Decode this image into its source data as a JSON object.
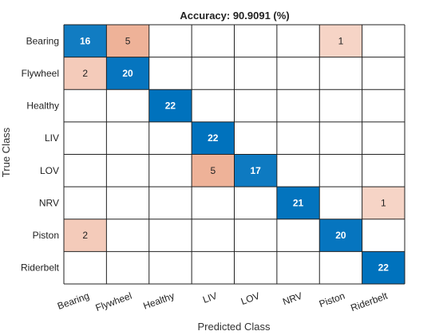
{
  "chart_data": {
    "type": "heatmap",
    "title": "Accuracy: 90.9091 (%)",
    "xlabel": "Predicted Class",
    "ylabel": "True Class",
    "classes": [
      "Bearing",
      "Flywheel",
      "Healthy",
      "LIV",
      "LOV",
      "NRV",
      "Piston",
      "Riderbelt"
    ],
    "matrix": [
      [
        16,
        5,
        0,
        0,
        0,
        0,
        1,
        0
      ],
      [
        2,
        20,
        0,
        0,
        0,
        0,
        0,
        0
      ],
      [
        0,
        0,
        22,
        0,
        0,
        0,
        0,
        0
      ],
      [
        0,
        0,
        0,
        22,
        0,
        0,
        0,
        0
      ],
      [
        0,
        0,
        0,
        5,
        17,
        0,
        0,
        0
      ],
      [
        0,
        0,
        0,
        0,
        0,
        21,
        0,
        1
      ],
      [
        2,
        0,
        0,
        0,
        0,
        0,
        20,
        0
      ],
      [
        0,
        0,
        0,
        0,
        0,
        0,
        0,
        22
      ]
    ],
    "colors": {
      "diagonal": "#0072bd",
      "off_diagonal": "#d95319",
      "empty": "#ffffff",
      "grid": "#222222"
    }
  }
}
